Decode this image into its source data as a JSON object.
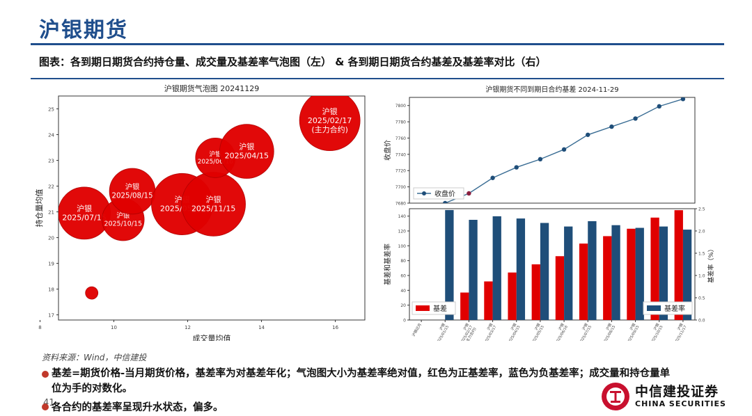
{
  "header": {
    "title": "沪银期货",
    "subtitle": "图表：各到期日期货合约持仓量、成交量及基差率气泡图（左） & 各到期日期货合约基差及基差率对比（右）"
  },
  "footer": {
    "source": "资料来源：Wind，中信建投",
    "note1": "基差=期货价格-当月期货价格，基差率为对基差年化；气泡图大小为基差率绝对值，红色为正基差率，蓝色为负基差率；成交量和持仓量单位为手的对数化。",
    "note2": "各合约的基差率呈现升水状态，偏多。",
    "page_number": "41",
    "logo_cn": "中信建投证券",
    "logo_en": "CHINA SECURITIES"
  },
  "colors": {
    "brand_blue": "#1f4e8c",
    "bubble_red": "#e00000",
    "bar_red": "#e00000",
    "bar_blue": "#1f4e79",
    "line_blue": "#3a6d94"
  },
  "chart_data": [
    {
      "type": "scatter",
      "title": "沪银期货气泡图 20241129",
      "xlabel": "成交量均值",
      "ylabel": "持仓量均值",
      "xlim": [
        8.5,
        16.8
      ],
      "ylim": [
        16.8,
        25.5
      ],
      "xticks": [
        "8",
        "10",
        "12",
        "14",
        "16"
      ],
      "yticks": [
        "17",
        "18",
        "19",
        "20",
        "21",
        "22",
        "23",
        "24",
        "25"
      ],
      "points": [
        {
          "x": 9.4,
          "y": 17.85,
          "size": 0.15,
          "labels": []
        },
        {
          "x": 9.2,
          "y": 20.95,
          "size": 2.6,
          "labels": [
            "沪银",
            "2025/07/15"
          ]
        },
        {
          "x": 10.25,
          "y": 20.7,
          "size": 1.7,
          "labels": [
            "沪银",
            "2025/10/15"
          ]
        },
        {
          "x": 10.5,
          "y": 21.8,
          "size": 2.0,
          "labels": [
            "沪银",
            "2025/08/15"
          ]
        },
        {
          "x": 11.85,
          "y": 21.3,
          "size": 3.6,
          "labels": [
            "沪银",
            "2025/05/15"
          ]
        },
        {
          "x": 12.7,
          "y": 21.3,
          "size": 3.9,
          "labels": [
            "沪银",
            "2025/11/15"
          ]
        },
        {
          "x": 12.75,
          "y": 23.1,
          "size": 1.5,
          "labels": [
            "沪银",
            "2025/06/16"
          ]
        },
        {
          "x": 13.6,
          "y": 23.35,
          "size": 2.8,
          "labels": [
            "沪银",
            "2025/04/15"
          ]
        },
        {
          "x": 15.85,
          "y": 24.55,
          "size": 3.5,
          "labels": [
            "沪银",
            "2025/02/17",
            "(主力合约)"
          ]
        }
      ]
    },
    {
      "type": "line",
      "title": "沪银期货不同到期日合约基差 2024-11-29",
      "ylabel": "收盘价",
      "ylim": [
        7680,
        7810
      ],
      "yticks": [
        "7680",
        "7700",
        "7720",
        "7740",
        "7760",
        "7780",
        "7800"
      ],
      "series": [
        {
          "name": "收盘价",
          "values": [
            7671,
            7680,
            7692,
            7711,
            7724,
            7734,
            7746,
            7764,
            7774,
            7784,
            7799,
            7808
          ]
        }
      ]
    },
    {
      "type": "bar",
      "categories": [
        "沪银近月",
        "沪银\n2025/01/15",
        "沪银\n2025/02/17\n(主力合约)",
        "沪银\n2025/03/17",
        "沪银\n2025/04/15",
        "沪银\n2025/05/15",
        "沪银\n2025/06/16",
        "沪银\n2025/07/15",
        "沪银\n2025/08/15",
        "沪银\n2025/09/15",
        "沪银\n2025/10/15",
        "沪银\n2025/11/17"
      ],
      "ylabel": "基差和基差率",
      "y2label": "基差率（%）",
      "ylim": [
        0,
        150
      ],
      "y2lim": [
        0,
        2.5
      ],
      "yticks": [
        "0",
        "20",
        "40",
        "60",
        "80",
        "100",
        "120",
        "140"
      ],
      "y2ticks": [
        "0.0",
        "0.5",
        "1.0",
        "1.5",
        "2.0",
        "2.5"
      ],
      "series": [
        {
          "name": "基差",
          "axis": "left",
          "values": [
            0,
            0,
            37,
            52,
            64,
            75,
            86,
            103,
            113,
            123,
            138,
            148
          ]
        },
        {
          "name": "基差率",
          "axis": "right",
          "values": [
            0,
            2.47,
            2.25,
            2.33,
            2.28,
            2.18,
            2.1,
            2.22,
            2.13,
            2.07,
            2.1,
            2.03
          ]
        }
      ]
    }
  ]
}
